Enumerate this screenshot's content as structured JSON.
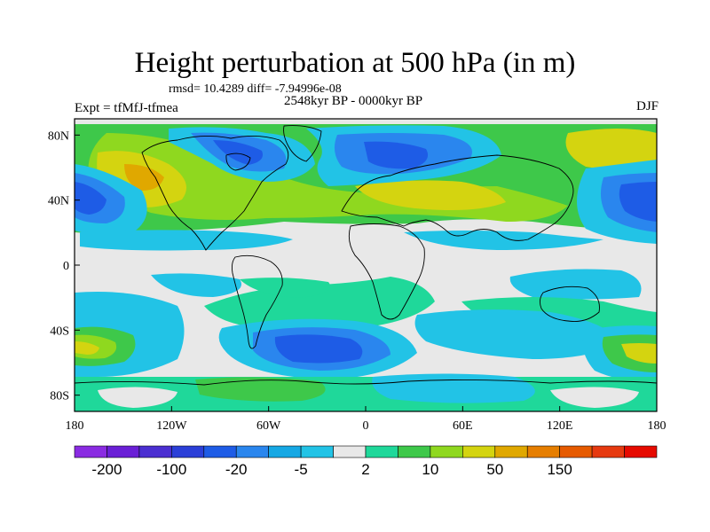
{
  "title": "Height perturbation at 500 hPa (in m)",
  "stats_line": "rmsd= 10.4289 diff= -7.94996e-08",
  "period": "2548kyr BP - 0000kyr BP",
  "experiment": "Expt = tfMfJ-tfmea",
  "season": "DJF",
  "map": {
    "variable": "Height perturbation at 500 hPa",
    "units": "m",
    "lon_range": [
      -180,
      180
    ],
    "lat_range": [
      -90,
      90
    ],
    "x_tick_labels": [
      "180",
      "120W",
      "60W",
      "0",
      "60E",
      "120E",
      "180"
    ],
    "x_tick_values": [
      -180,
      -120,
      -60,
      0,
      60,
      120,
      180
    ],
    "y_tick_labels": [
      "80N",
      "40N",
      "0",
      "40S",
      "80S"
    ],
    "y_tick_values": [
      80,
      40,
      0,
      -40,
      -80
    ]
  },
  "colorbar": {
    "colors": [
      "#8a2be2",
      "#6a1fd6",
      "#4b2fd1",
      "#2b3fd8",
      "#1e5ce6",
      "#2a86ee",
      "#16a8e4",
      "#22c3e6",
      "#e8e8e8",
      "#1fd89a",
      "#3ec84a",
      "#8fd81f",
      "#d4d410",
      "#e0a800",
      "#e67e00",
      "#e65a00",
      "#e63a10",
      "#e60a00"
    ],
    "labels": [
      "-200",
      "-100",
      "-20",
      "-5",
      "2",
      "10",
      "50",
      "150"
    ]
  },
  "colors": {
    "background_field": "#e8e8e8",
    "deep_blue": "#1e5ce6",
    "mid_blue": "#2a86ee",
    "cyan": "#22c3e6",
    "green": "#3ec84a",
    "light_green": "#8fd81f",
    "yellow": "#d4d410",
    "orange": "#e0a800"
  }
}
